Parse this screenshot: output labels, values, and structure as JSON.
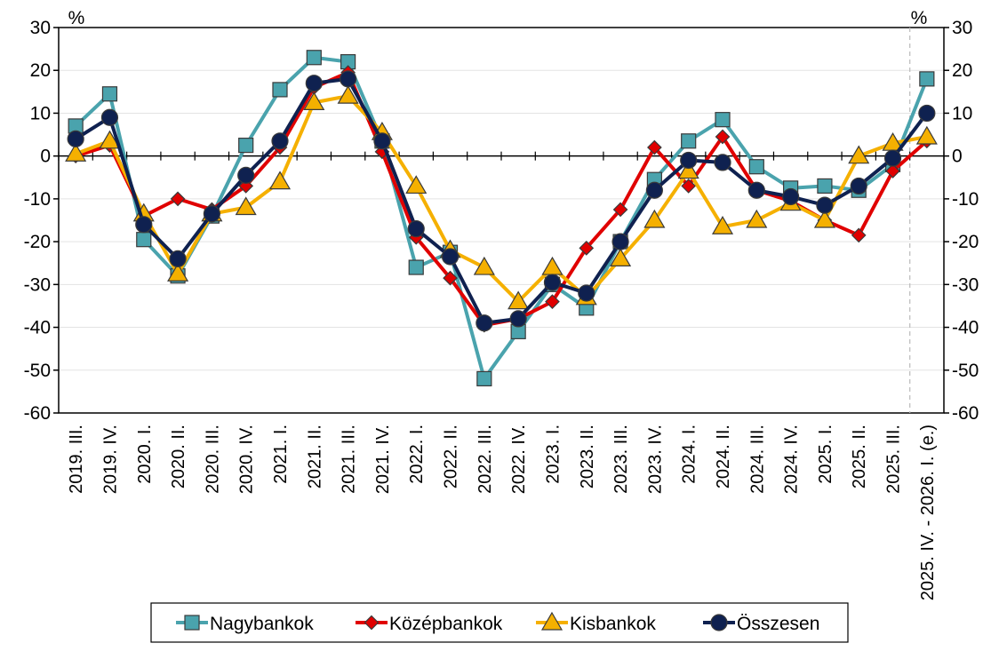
{
  "chart_data": {
    "type": "line",
    "unit_left": "%",
    "unit_right": "%",
    "ylim": [
      -60,
      30
    ],
    "ytick_step": 10,
    "grid": true,
    "legend_position": "bottom",
    "categories": [
      "2019. III.",
      "2019. IV.",
      "2020. I.",
      "2020. II.",
      "2020. III.",
      "2020. IV.",
      "2021. I.",
      "2021. II.",
      "2021. III.",
      "2021. IV.",
      "2022. I.",
      "2022. II.",
      "2022. III.",
      "2022. IV.",
      "2023. I.",
      "2023. II.",
      "2023. III.",
      "2023. IV.",
      "2024. I.",
      "2024. II.",
      "2024. III.",
      "2024. IV.",
      "2025. I.",
      "2025. II.",
      "2025. III.",
      "2025. IV. - 2026. I. (e.)"
    ],
    "series": [
      {
        "name": "Nagybankok",
        "color": "#4aa3ad",
        "marker": "square",
        "values": [
          7,
          14.5,
          -19.5,
          -28,
          -14,
          2.5,
          15.5,
          23,
          22,
          3.5,
          -26,
          -22.5,
          -52,
          -41,
          -30,
          -35.5,
          -20,
          -5.5,
          3.5,
          8.5,
          -2.5,
          -7.5,
          -7,
          -8,
          -2,
          18
        ]
      },
      {
        "name": "Középbankok",
        "color": "#e00000",
        "marker": "diamond",
        "values": [
          0,
          2.5,
          -14,
          -10,
          -12.5,
          -7,
          2,
          16,
          19.5,
          1,
          -19,
          -28.5,
          -39.5,
          -38,
          -34,
          -21.5,
          -12.5,
          2,
          -7,
          4.5,
          -8,
          -10.5,
          -15,
          -18.5,
          -3.5,
          3.5
        ]
      },
      {
        "name": "Kisbankok",
        "color": "#f5b000",
        "marker": "triangle",
        "values": [
          0.5,
          3.5,
          -13.5,
          -27.5,
          -13.5,
          -12,
          -6,
          12.5,
          14,
          5.5,
          -7,
          -22,
          -26,
          -34,
          -26,
          -33,
          -24,
          -15,
          -3.5,
          -16.5,
          -15,
          -11,
          -15,
          0,
          3,
          4.5
        ]
      },
      {
        "name": "Összesen",
        "color": "#0f2150",
        "marker": "circle",
        "values": [
          4,
          9,
          -16,
          -24,
          -13.5,
          -4.5,
          3.5,
          17,
          18,
          3.5,
          -17,
          -23.5,
          -39,
          -38,
          -29.5,
          -32,
          -20,
          -8,
          -1,
          -1.5,
          -8,
          -9.5,
          -11.5,
          -7,
          -0.5,
          10
        ]
      }
    ]
  }
}
